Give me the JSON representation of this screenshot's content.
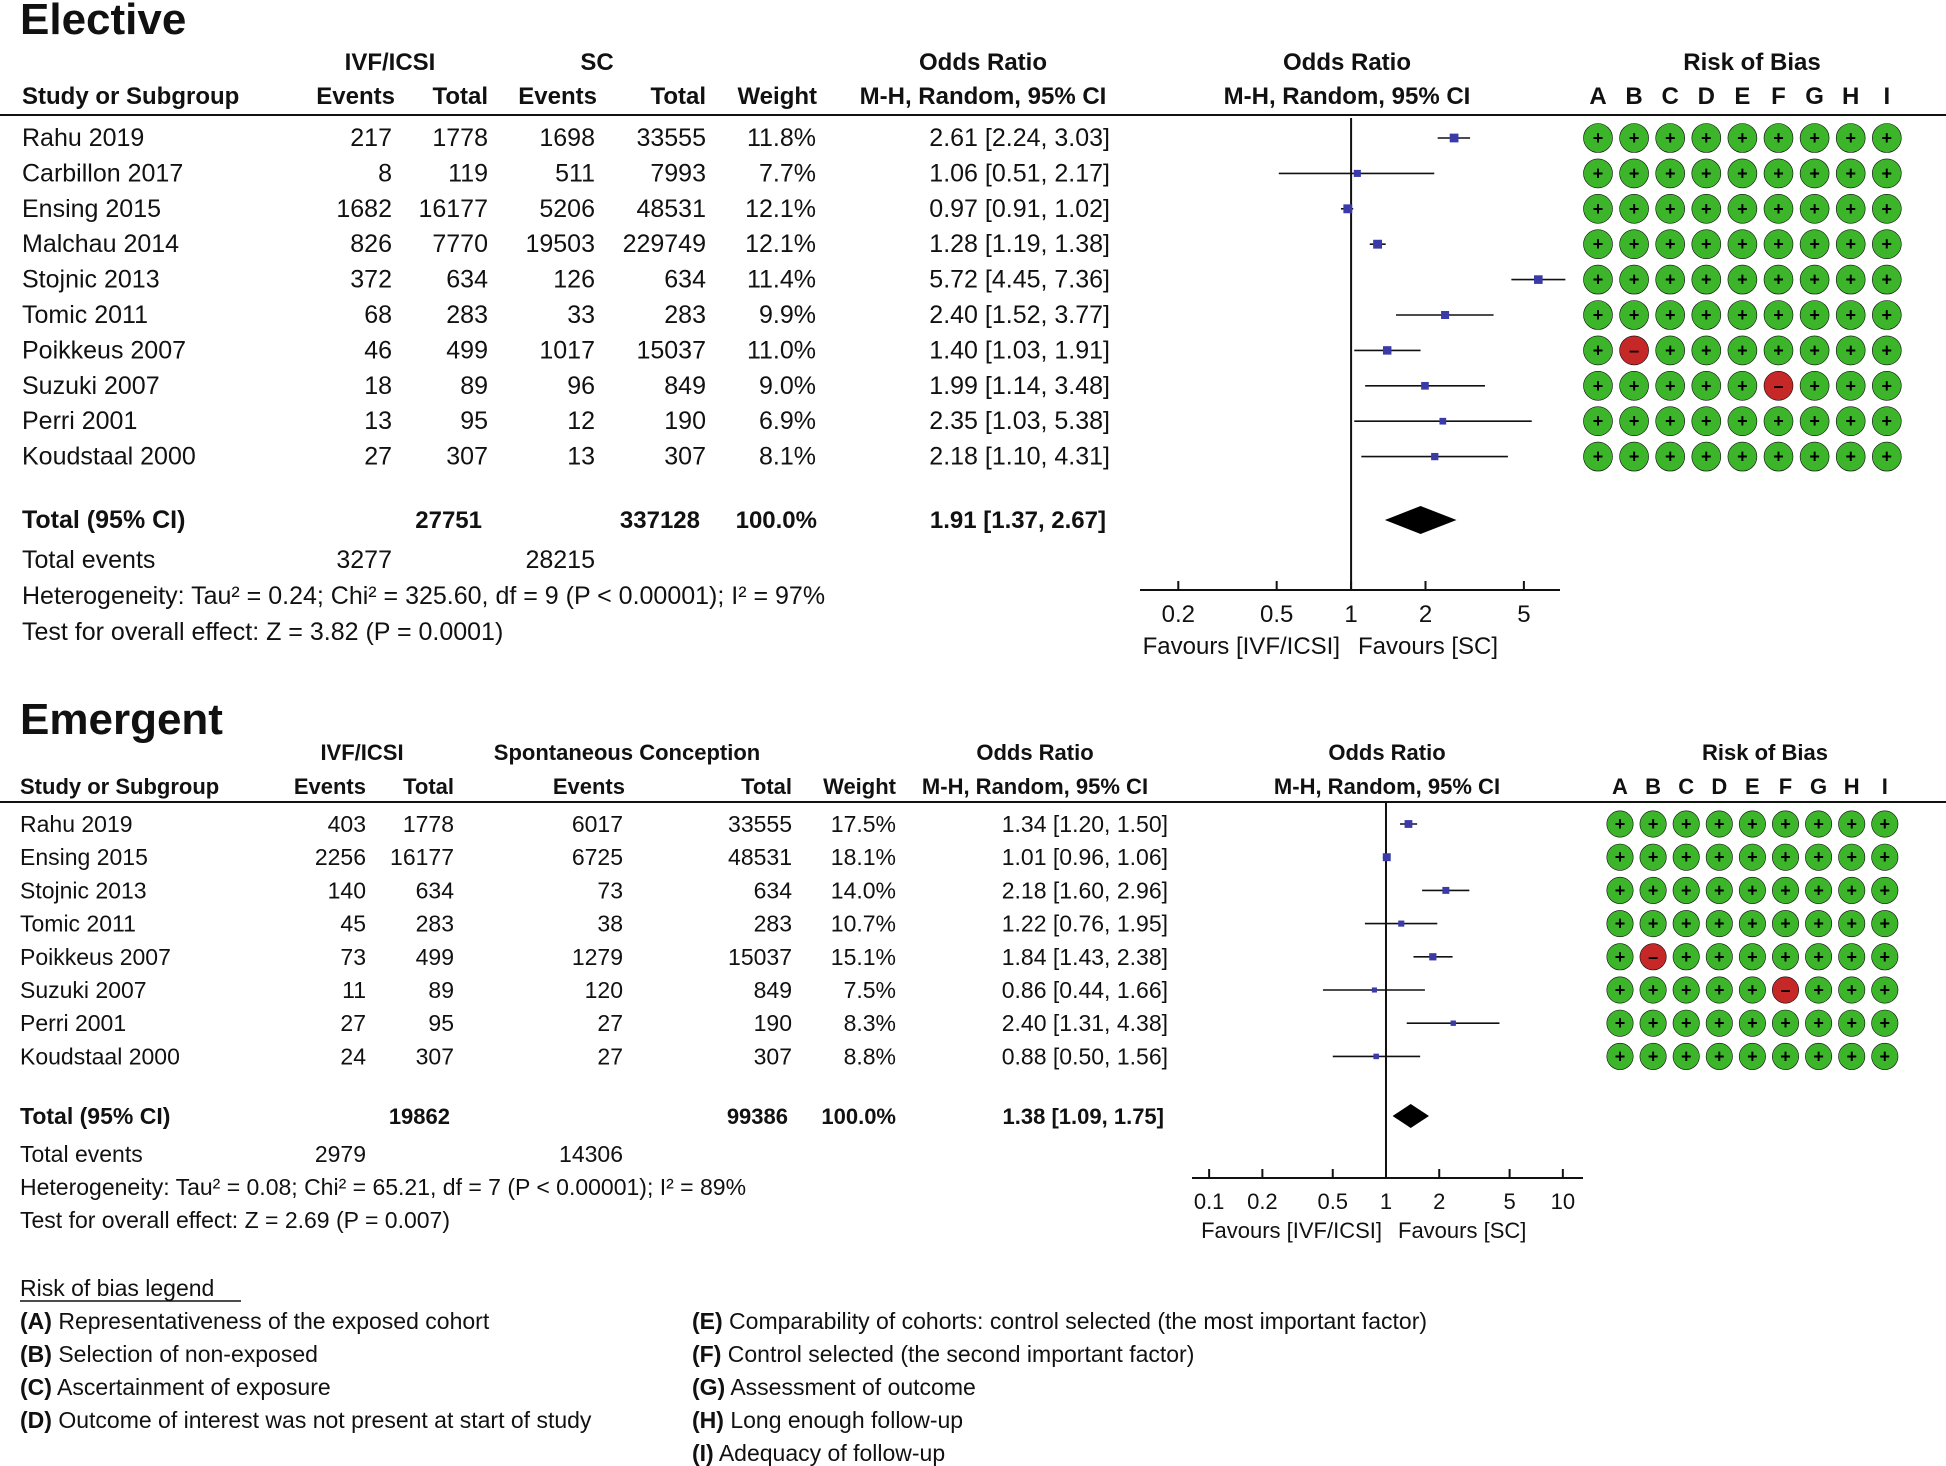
{
  "colors": {
    "low_risk": "#3cb52a",
    "high_risk": "#c62828",
    "marker": "#3a3aa8",
    "text": "#111111"
  },
  "bias_domains": [
    "A",
    "B",
    "C",
    "D",
    "E",
    "F",
    "G",
    "H",
    "I"
  ],
  "panels": [
    {
      "title": "Elective",
      "group1_label": "IVF/ICSI",
      "group2_label": "SC",
      "headers": {
        "study": "Study or Subgroup",
        "events1": "Events",
        "total1": "Total",
        "events2": "Events",
        "total2": "Total",
        "weight": "Weight",
        "or_title": "Odds Ratio",
        "or_method": "M-H, Random, 95% CI",
        "plot_title": "Odds Ratio",
        "plot_method": "M-H, Random, 95% CI",
        "rob_title": "Risk of Bias"
      },
      "studies": [
        {
          "name": "Rahu 2019",
          "events1": "217",
          "total1": "1778",
          "events2": "1698",
          "total2": "33555",
          "weight": "11.8%",
          "ci_text": "2.61 [2.24, 3.03]",
          "or": 2.61,
          "lo": 2.24,
          "hi": 3.03,
          "w": 11.8,
          "bias": [
            "+",
            "+",
            "+",
            "+",
            "+",
            "+",
            "+",
            "+",
            "+"
          ]
        },
        {
          "name": "Carbillon 2017",
          "events1": "8",
          "total1": "119",
          "events2": "511",
          "total2": "7993",
          "weight": "7.7%",
          "ci_text": "1.06 [0.51, 2.17]",
          "or": 1.06,
          "lo": 0.51,
          "hi": 2.17,
          "w": 7.7,
          "bias": [
            "+",
            "+",
            "+",
            "+",
            "+",
            "+",
            "+",
            "+",
            "+"
          ]
        },
        {
          "name": "Ensing 2015",
          "events1": "1682",
          "total1": "16177",
          "events2": "5206",
          "total2": "48531",
          "weight": "12.1%",
          "ci_text": "0.97 [0.91, 1.02]",
          "or": 0.97,
          "lo": 0.91,
          "hi": 1.02,
          "w": 12.1,
          "bias": [
            "+",
            "+",
            "+",
            "+",
            "+",
            "+",
            "+",
            "+",
            "+"
          ]
        },
        {
          "name": "Malchau 2014",
          "events1": "826",
          "total1": "7770",
          "events2": "19503",
          "total2": "229749",
          "weight": "12.1%",
          "ci_text": "1.28 [1.19, 1.38]",
          "or": 1.28,
          "lo": 1.19,
          "hi": 1.38,
          "w": 12.1,
          "bias": [
            "+",
            "+",
            "+",
            "+",
            "+",
            "+",
            "+",
            "+",
            "+"
          ]
        },
        {
          "name": "Stojnic 2013",
          "events1": "372",
          "total1": "634",
          "events2": "126",
          "total2": "634",
          "weight": "11.4%",
          "ci_text": "5.72 [4.45, 7.36]",
          "or": 5.72,
          "lo": 4.45,
          "hi": 7.36,
          "w": 11.4,
          "bias": [
            "+",
            "+",
            "+",
            "+",
            "+",
            "+",
            "+",
            "+",
            "+"
          ]
        },
        {
          "name": "Tomic 2011",
          "events1": "68",
          "total1": "283",
          "events2": "33",
          "total2": "283",
          "weight": "9.9%",
          "ci_text": "2.40 [1.52, 3.77]",
          "or": 2.4,
          "lo": 1.52,
          "hi": 3.77,
          "w": 9.9,
          "bias": [
            "+",
            "+",
            "+",
            "+",
            "+",
            "+",
            "+",
            "+",
            "+"
          ]
        },
        {
          "name": "Poikkeus 2007",
          "events1": "46",
          "total1": "499",
          "events2": "1017",
          "total2": "15037",
          "weight": "11.0%",
          "ci_text": "1.40 [1.03, 1.91]",
          "or": 1.4,
          "lo": 1.03,
          "hi": 1.91,
          "w": 11.0,
          "bias": [
            "+",
            "-",
            "+",
            "+",
            "+",
            "+",
            "+",
            "+",
            "+"
          ]
        },
        {
          "name": "Suzuki 2007",
          "events1": "18",
          "total1": "89",
          "events2": "96",
          "total2": "849",
          "weight": "9.0%",
          "ci_text": "1.99 [1.14, 3.48]",
          "or": 1.99,
          "lo": 1.14,
          "hi": 3.48,
          "w": 9.0,
          "bias": [
            "+",
            "+",
            "+",
            "+",
            "+",
            "-",
            "+",
            "+",
            "+"
          ]
        },
        {
          "name": "Perri 2001",
          "events1": "13",
          "total1": "95",
          "events2": "12",
          "total2": "190",
          "weight": "6.9%",
          "ci_text": "2.35 [1.03, 5.38]",
          "or": 2.35,
          "lo": 1.03,
          "hi": 5.38,
          "w": 6.9,
          "bias": [
            "+",
            "+",
            "+",
            "+",
            "+",
            "+",
            "+",
            "+",
            "+"
          ]
        },
        {
          "name": "Koudstaal 2000",
          "events1": "27",
          "total1": "307",
          "events2": "13",
          "total2": "307",
          "weight": "8.1%",
          "ci_text": "2.18 [1.10, 4.31]",
          "or": 2.18,
          "lo": 1.1,
          "hi": 4.31,
          "w": 8.1,
          "bias": [
            "+",
            "+",
            "+",
            "+",
            "+",
            "+",
            "+",
            "+",
            "+"
          ]
        }
      ],
      "total": {
        "label": "Total (95% CI)",
        "total1": "27751",
        "total2": "337128",
        "weight": "100.0%",
        "ci_text": "1.91 [1.37, 2.67]",
        "or": 1.91,
        "lo": 1.37,
        "hi": 2.67
      },
      "total_events": {
        "label": "Total events",
        "events1": "3277",
        "events2": "28215"
      },
      "heterogeneity": "Heterogeneity: Tau² = 0.24; Chi² = 325.60, df = 9 (P < 0.00001); I² = 97%",
      "overall": "Test for overall effect: Z = 3.82 (P = 0.0001)",
      "axis_ticks": [
        0.2,
        0.5,
        1,
        2,
        5
      ],
      "axis_range": [
        0.14,
        7.0
      ],
      "favours_left": "Favours [IVF/ICSI]",
      "favours_right": "Favours [SC]"
    },
    {
      "title": "Emergent",
      "group1_label": "IVF/ICSI",
      "group2_label": "Spontaneous Conception",
      "headers": {
        "study": "Study or Subgroup",
        "events1": "Events",
        "total1": "Total",
        "events2": "Events",
        "total2": "Total",
        "weight": "Weight",
        "or_title": "Odds Ratio",
        "or_method": "M-H, Random, 95% CI",
        "plot_title": "Odds Ratio",
        "plot_method": "M-H, Random, 95% CI",
        "rob_title": "Risk of Bias"
      },
      "studies": [
        {
          "name": "Rahu 2019",
          "events1": "403",
          "total1": "1778",
          "events2": "6017",
          "total2": "33555",
          "weight": "17.5%",
          "ci_text": "1.34 [1.20, 1.50]",
          "or": 1.34,
          "lo": 1.2,
          "hi": 1.5,
          "w": 17.5,
          "bias": [
            "+",
            "+",
            "+",
            "+",
            "+",
            "+",
            "+",
            "+",
            "+"
          ]
        },
        {
          "name": "Ensing 2015",
          "events1": "2256",
          "total1": "16177",
          "events2": "6725",
          "total2": "48531",
          "weight": "18.1%",
          "ci_text": "1.01 [0.96, 1.06]",
          "or": 1.01,
          "lo": 0.96,
          "hi": 1.06,
          "w": 18.1,
          "bias": [
            "+",
            "+",
            "+",
            "+",
            "+",
            "+",
            "+",
            "+",
            "+"
          ]
        },
        {
          "name": "Stojnic 2013",
          "events1": "140",
          "total1": "634",
          "events2": "73",
          "total2": "634",
          "weight": "14.0%",
          "ci_text": "2.18 [1.60, 2.96]",
          "or": 2.18,
          "lo": 1.6,
          "hi": 2.96,
          "w": 14.0,
          "bias": [
            "+",
            "+",
            "+",
            "+",
            "+",
            "+",
            "+",
            "+",
            "+"
          ]
        },
        {
          "name": "Tomic 2011",
          "events1": "45",
          "total1": "283",
          "events2": "38",
          "total2": "283",
          "weight": "10.7%",
          "ci_text": "1.22 [0.76, 1.95]",
          "or": 1.22,
          "lo": 0.76,
          "hi": 1.95,
          "w": 10.7,
          "bias": [
            "+",
            "+",
            "+",
            "+",
            "+",
            "+",
            "+",
            "+",
            "+"
          ]
        },
        {
          "name": "Poikkeus 2007",
          "events1": "73",
          "total1": "499",
          "events2": "1279",
          "total2": "15037",
          "weight": "15.1%",
          "ci_text": "1.84 [1.43, 2.38]",
          "or": 1.84,
          "lo": 1.43,
          "hi": 2.38,
          "w": 15.1,
          "bias": [
            "+",
            "-",
            "+",
            "+",
            "+",
            "+",
            "+",
            "+",
            "+"
          ]
        },
        {
          "name": "Suzuki 2007",
          "events1": "11",
          "total1": "89",
          "events2": "120",
          "total2": "849",
          "weight": "7.5%",
          "ci_text": "0.86 [0.44, 1.66]",
          "or": 0.86,
          "lo": 0.44,
          "hi": 1.66,
          "w": 7.5,
          "bias": [
            "+",
            "+",
            "+",
            "+",
            "+",
            "-",
            "+",
            "+",
            "+"
          ]
        },
        {
          "name": "Perri 2001",
          "events1": "27",
          "total1": "95",
          "events2": "27",
          "total2": "190",
          "weight": "8.3%",
          "ci_text": "2.40 [1.31, 4.38]",
          "or": 2.4,
          "lo": 1.31,
          "hi": 4.38,
          "w": 8.3,
          "bias": [
            "+",
            "+",
            "+",
            "+",
            "+",
            "+",
            "+",
            "+",
            "+"
          ]
        },
        {
          "name": "Koudstaal 2000",
          "events1": "24",
          "total1": "307",
          "events2": "27",
          "total2": "307",
          "weight": "8.8%",
          "ci_text": "0.88 [0.50, 1.56]",
          "or": 0.88,
          "lo": 0.5,
          "hi": 1.56,
          "w": 8.8,
          "bias": [
            "+",
            "+",
            "+",
            "+",
            "+",
            "+",
            "+",
            "+",
            "+"
          ]
        }
      ],
      "total": {
        "label": "Total (95% CI)",
        "total1": "19862",
        "total2": "99386",
        "weight": "100.0%",
        "ci_text": "1.38 [1.09, 1.75]",
        "or": 1.38,
        "lo": 1.09,
        "hi": 1.75
      },
      "total_events": {
        "label": "Total events",
        "events1": "2979",
        "events2": "14306"
      },
      "heterogeneity": "Heterogeneity: Tau² = 0.08; Chi² = 65.21, df = 7 (P < 0.00001); I² = 89%",
      "overall": "Test for overall effect: Z = 2.69 (P = 0.007)",
      "axis_ticks": [
        0.1,
        0.2,
        0.5,
        1,
        2,
        5,
        10
      ],
      "axis_range": [
        0.08,
        13.0
      ],
      "favours_left": "Favours [IVF/ICSI]",
      "favours_right": "Favours [SC]"
    }
  ],
  "legend": {
    "title": "Risk of bias legend",
    "items": [
      {
        "key": "(A)",
        "text": " Representativeness of the exposed cohort"
      },
      {
        "key": "(B)",
        "text": " Selection of non-exposed"
      },
      {
        "key": "(C)",
        "text": " Ascertainment of exposure"
      },
      {
        "key": "(D)",
        "text": " Outcome of interest was not present at start of study"
      },
      {
        "key": "(E)",
        "text": " Comparability of cohorts: control selected (the most important factor)"
      },
      {
        "key": "(F)",
        "text": " Control selected (the second important factor)"
      },
      {
        "key": "(G)",
        "text": " Assessment of outcome"
      },
      {
        "key": "(H)",
        "text": " Long enough follow-up"
      },
      {
        "key": "(I)",
        "text": " Adequacy of follow-up"
      }
    ]
  },
  "chart_data": [
    {
      "type": "forest",
      "title": "Elective",
      "xlabel": "Odds Ratio (M-H, Random, 95% CI)",
      "xscale": "log",
      "ticks": [
        0.2,
        0.5,
        1,
        2,
        5
      ],
      "categories": [
        "Rahu 2019",
        "Carbillon 2017",
        "Ensing 2015",
        "Malchau 2014",
        "Stojnic 2013",
        "Tomic 2011",
        "Poikkeus 2007",
        "Suzuki 2007",
        "Perri 2001",
        "Koudstaal 2000"
      ],
      "or": [
        2.61,
        1.06,
        0.97,
        1.28,
        5.72,
        2.4,
        1.4,
        1.99,
        2.35,
        2.18
      ],
      "lower": [
        2.24,
        0.51,
        0.91,
        1.19,
        4.45,
        1.52,
        1.03,
        1.14,
        1.03,
        1.1
      ],
      "upper": [
        3.03,
        2.17,
        1.02,
        1.38,
        7.36,
        3.77,
        1.91,
        3.48,
        5.38,
        4.31
      ],
      "weights": [
        11.8,
        7.7,
        12.1,
        12.1,
        11.4,
        9.9,
        11.0,
        9.0,
        6.9,
        8.1
      ],
      "pooled": {
        "or": 1.91,
        "lower": 1.37,
        "upper": 2.67
      }
    },
    {
      "type": "forest",
      "title": "Emergent",
      "xlabel": "Odds Ratio (M-H, Random, 95% CI)",
      "xscale": "log",
      "ticks": [
        0.1,
        0.2,
        0.5,
        1,
        2,
        5,
        10
      ],
      "categories": [
        "Rahu 2019",
        "Ensing 2015",
        "Stojnic 2013",
        "Tomic 2011",
        "Poikkeus 2007",
        "Suzuki 2007",
        "Perri 2001",
        "Koudstaal 2000"
      ],
      "or": [
        1.34,
        1.01,
        2.18,
        1.22,
        1.84,
        0.86,
        2.4,
        0.88
      ],
      "lower": [
        1.2,
        0.96,
        1.6,
        0.76,
        1.43,
        0.44,
        1.31,
        0.5
      ],
      "upper": [
        1.5,
        1.06,
        2.96,
        1.95,
        2.38,
        1.66,
        4.38,
        1.56
      ],
      "weights": [
        17.5,
        18.1,
        14.0,
        10.7,
        15.1,
        7.5,
        8.3,
        8.8
      ],
      "pooled": {
        "or": 1.38,
        "lower": 1.09,
        "upper": 1.75
      }
    }
  ]
}
